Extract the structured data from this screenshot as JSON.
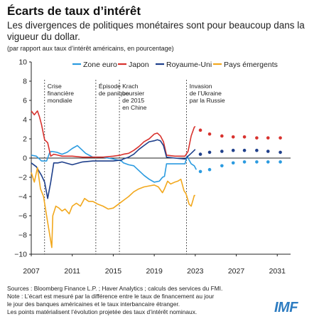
{
  "header": {
    "title": "Écarts de taux d’intérêt",
    "subtitle": "Les divergences de politiques monétaires sont pour beaucoup dans la vigueur du dollar.",
    "note": "(par rapport aux taux d’intérêt américains, en pourcentage)"
  },
  "footer": {
    "source": "Sources : Bloomberg Finance L.P. ; Haver Analytics ; calculs des services du FMI.",
    "note1": "Note : L’écart est mesuré par la différence entre le taux de financement au jour",
    "note2": "le jour des banques américaines et le taux interbancaire étranger.",
    "note3": "Les points matérialisent l’évolution projetée des taux d’intérêt nominaux.",
    "logo": "IMF"
  },
  "chart_data": {
    "type": "line",
    "xlim": [
      2007,
      2032.3
    ],
    "ylim": [
      -10,
      10
    ],
    "yticks": [
      10,
      8,
      6,
      4,
      2,
      0,
      -2,
      -4,
      -6,
      -8,
      -10
    ],
    "xticks": [
      2007,
      2011,
      2015,
      2019,
      2023,
      2027,
      2031
    ],
    "grid": false,
    "legend_position": "top",
    "series": [
      {
        "name": "Zone euro",
        "color": "#2b9be0",
        "points": [
          [
            2007.0,
            0.3
          ],
          [
            2007.5,
            0.2
          ],
          [
            2008.0,
            -0.3
          ],
          [
            2008.5,
            -0.3
          ],
          [
            2008.8,
            0.6
          ],
          [
            2009.0,
            0.7
          ],
          [
            2009.5,
            0.6
          ],
          [
            2010.0,
            0.4
          ],
          [
            2010.5,
            0.6
          ],
          [
            2011.0,
            1.0
          ],
          [
            2011.5,
            1.3
          ],
          [
            2011.9,
            0.9
          ],
          [
            2012.3,
            0.5
          ],
          [
            2013.0,
            0.1
          ],
          [
            2014.0,
            0.1
          ],
          [
            2015.0,
            -0.1
          ],
          [
            2015.8,
            -0.3
          ],
          [
            2016.0,
            -0.5
          ],
          [
            2016.5,
            -0.7
          ],
          [
            2017.0,
            -0.8
          ],
          [
            2017.5,
            -1.3
          ],
          [
            2018.0,
            -1.8
          ],
          [
            2018.5,
            -2.2
          ],
          [
            2019.0,
            -2.5
          ],
          [
            2019.5,
            -2.4
          ],
          [
            2019.8,
            -2.0
          ],
          [
            2020.0,
            -1.9
          ],
          [
            2020.2,
            -0.6
          ],
          [
            2021.0,
            -0.6
          ],
          [
            2022.0,
            -0.6
          ],
          [
            2022.2,
            0.2
          ],
          [
            2022.6,
            -0.6
          ],
          [
            2022.9,
            -0.8
          ],
          [
            2023.1,
            -1.2
          ]
        ],
        "projection": [
          [
            2023.5,
            -1.4
          ],
          [
            2024.4,
            -1.2
          ],
          [
            2025.6,
            -0.8
          ],
          [
            2026.7,
            -0.5
          ],
          [
            2027.8,
            -0.4
          ],
          [
            2029.0,
            -0.4
          ],
          [
            2030.1,
            -0.4
          ],
          [
            2031.3,
            -0.4
          ]
        ]
      },
      {
        "name": "Japon",
        "color": "#d8322e",
        "points": [
          [
            2007.0,
            4.9
          ],
          [
            2007.3,
            4.5
          ],
          [
            2007.6,
            4.9
          ],
          [
            2007.8,
            4.3
          ],
          [
            2008.0,
            3.5
          ],
          [
            2008.3,
            1.9
          ],
          [
            2008.6,
            1.6
          ],
          [
            2008.9,
            0.2
          ],
          [
            2009.2,
            0.4
          ],
          [
            2009.6,
            0.3
          ],
          [
            2010.0,
            0.2
          ],
          [
            2011.0,
            0.2
          ],
          [
            2012.0,
            0.1
          ],
          [
            2013.0,
            0.1
          ],
          [
            2014.0,
            0.1
          ],
          [
            2015.0,
            0.2
          ],
          [
            2015.7,
            0.3
          ],
          [
            2016.0,
            0.4
          ],
          [
            2016.5,
            0.5
          ],
          [
            2017.0,
            0.8
          ],
          [
            2017.5,
            1.2
          ],
          [
            2018.0,
            1.7
          ],
          [
            2018.5,
            2.0
          ],
          [
            2019.0,
            2.5
          ],
          [
            2019.3,
            2.6
          ],
          [
            2019.6,
            2.3
          ],
          [
            2019.9,
            1.7
          ],
          [
            2020.2,
            0.3
          ],
          [
            2021.0,
            0.2
          ],
          [
            2022.0,
            0.2
          ],
          [
            2022.3,
            0.7
          ],
          [
            2022.6,
            2.3
          ],
          [
            2022.9,
            3.2
          ],
          [
            2023.0,
            3.3
          ]
        ],
        "projection": [
          [
            2023.5,
            2.9
          ],
          [
            2024.4,
            2.5
          ],
          [
            2025.6,
            2.3
          ],
          [
            2026.7,
            2.2
          ],
          [
            2027.8,
            2.2
          ],
          [
            2029.0,
            2.1
          ],
          [
            2030.1,
            2.1
          ],
          [
            2031.3,
            2.1
          ]
        ]
      },
      {
        "name": "Royaume-Uni",
        "color": "#1e3f8b",
        "points": [
          [
            2007.0,
            -0.5
          ],
          [
            2007.5,
            -0.9
          ],
          [
            2008.0,
            -1.8
          ],
          [
            2008.3,
            -2.5
          ],
          [
            2008.6,
            -4.2
          ],
          [
            2008.9,
            -2.5
          ],
          [
            2009.2,
            -0.5
          ],
          [
            2009.6,
            -0.5
          ],
          [
            2010.0,
            -0.4
          ],
          [
            2011.0,
            -0.7
          ],
          [
            2012.0,
            -0.4
          ],
          [
            2013.0,
            -0.3
          ],
          [
            2014.0,
            -0.3
          ],
          [
            2015.0,
            -0.3
          ],
          [
            2015.8,
            -0.2
          ],
          [
            2016.0,
            -0.1
          ],
          [
            2016.5,
            0.1
          ],
          [
            2017.0,
            0.4
          ],
          [
            2017.5,
            0.9
          ],
          [
            2018.0,
            1.3
          ],
          [
            2018.5,
            1.7
          ],
          [
            2019.0,
            1.8
          ],
          [
            2019.3,
            1.9
          ],
          [
            2019.6,
            1.8
          ],
          [
            2019.9,
            1.3
          ],
          [
            2020.2,
            0.1
          ],
          [
            2021.0,
            0.0
          ],
          [
            2022.0,
            -0.1
          ],
          [
            2022.3,
            0.2
          ],
          [
            2022.6,
            0.5
          ],
          [
            2022.9,
            0.8
          ],
          [
            2023.0,
            0.9
          ]
        ],
        "projection": [
          [
            2023.5,
            0.4
          ],
          [
            2024.4,
            0.6
          ],
          [
            2025.6,
            0.7
          ],
          [
            2026.7,
            0.8
          ],
          [
            2027.8,
            0.8
          ],
          [
            2029.0,
            0.8
          ],
          [
            2030.1,
            0.7
          ],
          [
            2031.3,
            0.6
          ]
        ]
      },
      {
        "name": "Pays émergents",
        "color": "#f2a81d",
        "points": [
          [
            2007.0,
            -1.5
          ],
          [
            2007.3,
            -2.5
          ],
          [
            2007.6,
            -1.0
          ],
          [
            2007.9,
            -3.2
          ],
          [
            2008.2,
            -4.0
          ],
          [
            2008.5,
            -6.0
          ],
          [
            2008.8,
            -8.0
          ],
          [
            2009.0,
            -9.3
          ],
          [
            2009.1,
            -6.0
          ],
          [
            2009.4,
            -5.0
          ],
          [
            2009.7,
            -5.2
          ],
          [
            2010.0,
            -5.5
          ],
          [
            2010.3,
            -5.3
          ],
          [
            2010.7,
            -5.8
          ],
          [
            2011.0,
            -5.0
          ],
          [
            2011.4,
            -4.7
          ],
          [
            2011.8,
            -5.0
          ],
          [
            2012.2,
            -4.2
          ],
          [
            2012.6,
            -4.5
          ],
          [
            2013.0,
            -4.5
          ],
          [
            2013.5,
            -4.8
          ],
          [
            2014.0,
            -5.0
          ],
          [
            2014.5,
            -5.3
          ],
          [
            2015.0,
            -5.2
          ],
          [
            2015.5,
            -4.8
          ],
          [
            2016.0,
            -4.4
          ],
          [
            2016.5,
            -4.0
          ],
          [
            2017.0,
            -3.5
          ],
          [
            2017.5,
            -3.2
          ],
          [
            2018.0,
            -3.0
          ],
          [
            2018.5,
            -2.9
          ],
          [
            2019.0,
            -2.8
          ],
          [
            2019.4,
            -3.0
          ],
          [
            2019.8,
            -3.6
          ],
          [
            2020.0,
            -3.2
          ],
          [
            2020.3,
            -2.4
          ],
          [
            2020.6,
            -2.7
          ],
          [
            2021.0,
            -2.5
          ],
          [
            2021.3,
            -2.4
          ],
          [
            2021.6,
            -2.2
          ],
          [
            2021.9,
            -3.4
          ],
          [
            2022.1,
            -3.7
          ],
          [
            2022.4,
            -4.8
          ],
          [
            2022.6,
            -5.0
          ],
          [
            2022.8,
            -4.3
          ],
          [
            2022.9,
            -3.9
          ],
          [
            2023.0,
            -3.9
          ]
        ],
        "projection": []
      }
    ],
    "events": [
      {
        "x": 2008.3,
        "lines": [
          "Crise",
          "financière",
          "mondiale"
        ]
      },
      {
        "x": 2013.3,
        "lines": [
          "Épisode",
          "de panique"
        ]
      },
      {
        "x": 2015.6,
        "lines": [
          "Krach",
          "boursier",
          "de 2015",
          "en Chine"
        ]
      },
      {
        "x": 2022.15,
        "lines": [
          "Invasion",
          "de l’Ukraine",
          "par la Russie"
        ]
      }
    ]
  }
}
